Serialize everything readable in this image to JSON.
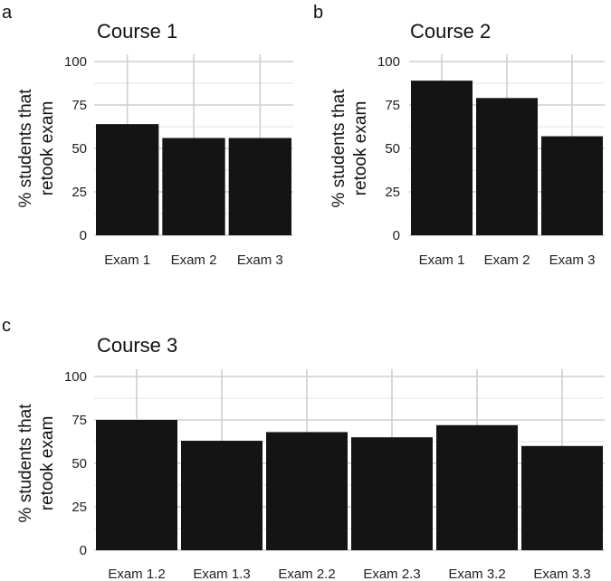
{
  "chart_data": [
    {
      "type": "bar",
      "panel": "a",
      "title": "Course 1",
      "ylabel": [
        "% students that",
        "retook exam"
      ],
      "xlabel": "",
      "categories": [
        "Exam 1",
        "Exam 2",
        "Exam 3"
      ],
      "values": [
        64,
        56,
        56
      ],
      "ylim": [
        0,
        100
      ],
      "yticks": [
        "0",
        "25",
        "50",
        "75",
        "100"
      ],
      "grid": true,
      "bar_color": "#141414",
      "grid_color": "#cfcfcf"
    },
    {
      "type": "bar",
      "panel": "b",
      "title": "Course 2",
      "ylabel": [
        "% students that",
        "retook exam"
      ],
      "xlabel": "",
      "categories": [
        "Exam 1",
        "Exam 2",
        "Exam 3"
      ],
      "values": [
        89,
        79,
        57
      ],
      "ylim": [
        0,
        100
      ],
      "yticks": [
        "0",
        "25",
        "50",
        "75",
        "100"
      ],
      "grid": true,
      "bar_color": "#141414",
      "grid_color": "#cfcfcf"
    },
    {
      "type": "bar",
      "panel": "c",
      "title": "Course 3",
      "ylabel": [
        "% students that",
        "retook exam"
      ],
      "xlabel": "",
      "categories": [
        "Exam 1.2",
        "Exam 1.3",
        "Exam 2.2",
        "Exam 2.3",
        "Exam 3.2",
        "Exam 3.3"
      ],
      "values": [
        75,
        63,
        68,
        65,
        72,
        60
      ],
      "ylim": [
        0,
        100
      ],
      "yticks": [
        "0",
        "25",
        "50",
        "75",
        "100"
      ],
      "grid": true,
      "bar_color": "#141414",
      "grid_color": "#cfcfcf"
    }
  ]
}
